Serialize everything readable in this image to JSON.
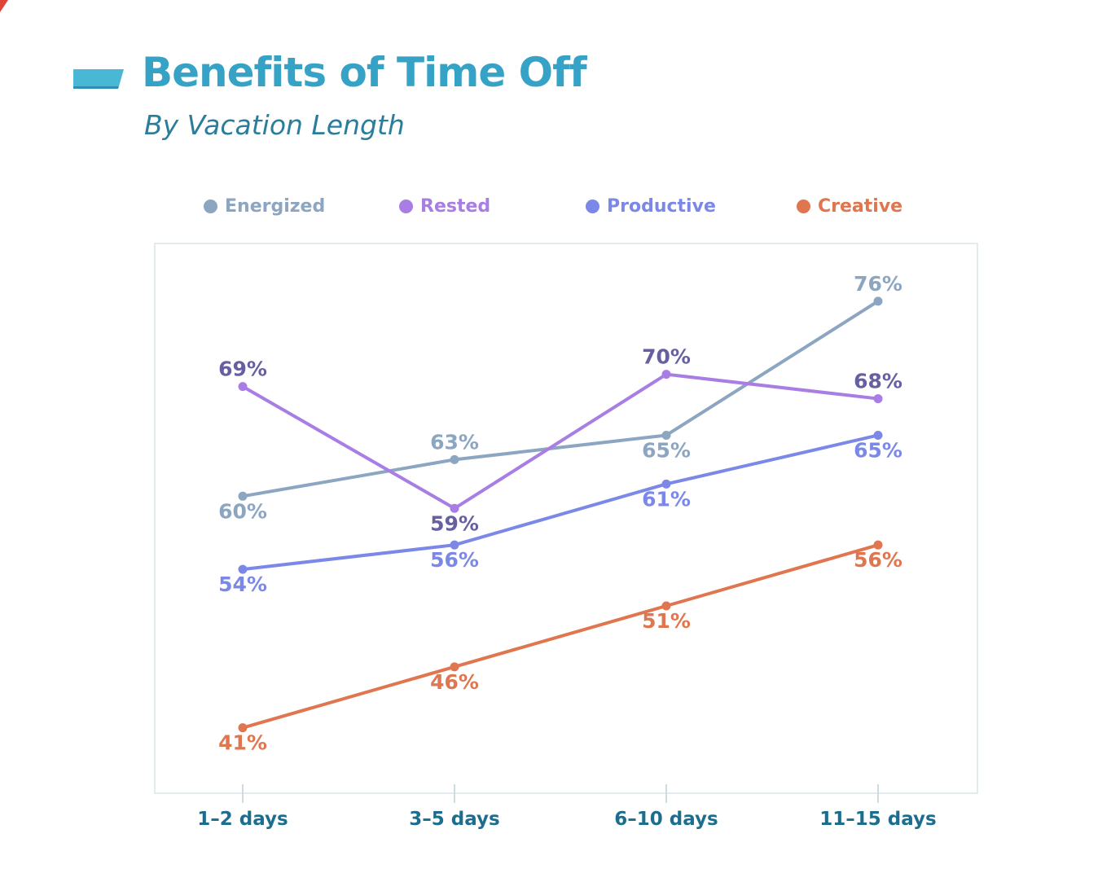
{
  "header": {
    "title": "Benefits of Time Off",
    "subtitle": "By Vacation Length"
  },
  "colors": {
    "title": "#36a3c6",
    "subtitle": "#2a7e9b",
    "title_marker_fill": "#49b8d4",
    "title_marker_edge": "#2e8fae",
    "axis_label": "#1d6e8e",
    "panel_border": "#e4ebef",
    "tick": "#cfdcdf",
    "background": "#ffffff"
  },
  "chart_data": {
    "type": "line",
    "title": "Benefits of Time Off",
    "subtitle": "By Vacation Length",
    "categories": [
      "1–2 days",
      "3–5 days",
      "6–10 days",
      "11–15 days"
    ],
    "series": [
      {
        "name": "Energized",
        "color": "#8ca5c1",
        "label_color": "#8ca5c1",
        "values": [
          60,
          63,
          65,
          76
        ],
        "labels": [
          "60%",
          "63%",
          "65%",
          "76%"
        ],
        "label_pos": [
          "below",
          "above",
          "below",
          "above"
        ]
      },
      {
        "name": "Rested",
        "color": "#a87de4",
        "label_color": "#665fa0",
        "values": [
          69,
          59,
          70,
          68
        ],
        "labels": [
          "69%",
          "59%",
          "70%",
          "68%"
        ],
        "label_pos": [
          "above",
          "below",
          "above",
          "above"
        ]
      },
      {
        "name": "Productive",
        "color": "#7b88e8",
        "label_color": "#7b88e8",
        "values": [
          54,
          56,
          61,
          65
        ],
        "labels": [
          "54%",
          "56%",
          "61%",
          "65%"
        ],
        "label_pos": [
          "below",
          "below",
          "below",
          "below"
        ]
      },
      {
        "name": "Creative",
        "color": "#e0764f",
        "label_color": "#e0764f",
        "values": [
          41,
          46,
          51,
          56
        ],
        "labels": [
          "41%",
          "46%",
          "51%",
          "56%"
        ],
        "label_pos": [
          "below",
          "below",
          "below",
          "below"
        ]
      }
    ],
    "value_suffix": "%",
    "xlabel": "",
    "ylabel": "",
    "ylim": [
      35.7,
      80.8
    ],
    "grid": false,
    "y_axis_visible": false,
    "legend_position": "top"
  }
}
